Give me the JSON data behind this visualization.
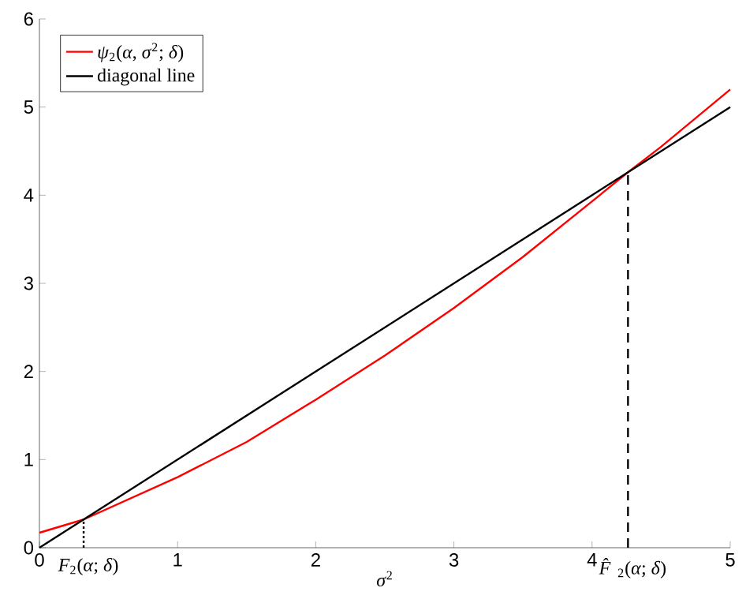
{
  "chart_data": {
    "type": "line",
    "xlabel": "*σ*$^{2}$",
    "x": [
      0,
      0.32,
      1,
      1.5,
      2,
      2.5,
      3,
      3.5,
      4,
      4.26,
      4.5,
      5
    ],
    "series": [
      {
        "name": "*ψ*$_{2}$(*α*, *σ*$^{2}$; *δ*)",
        "color": "#ff0000",
        "values": [
          0.17,
          0.32,
          0.8,
          1.2,
          1.68,
          2.18,
          2.72,
          3.3,
          3.93,
          4.26,
          4.55,
          5.2
        ]
      },
      {
        "name": "diagonal line",
        "color": "#000000",
        "x": [
          0,
          5
        ],
        "values": [
          0,
          5
        ]
      },
      {
        "color": "#000000",
        "x": [
          0.32,
          0.32
        ],
        "values": [
          0,
          0.32
        ],
        "line_style": "dotted"
      },
      {
        "color": "#000000",
        "x": [
          4.26,
          4.26
        ],
        "values": [
          0,
          4.26
        ],
        "line_style": "dashed"
      }
    ],
    "xlim": [
      0,
      5
    ],
    "ylim": [
      0,
      6
    ],
    "xticks": [
      0,
      1,
      2,
      3,
      4,
      5
    ],
    "yticks": [
      0,
      1,
      2,
      3,
      4,
      5,
      6
    ],
    "annotations": [
      {
        "text": "*F*$_{2}$(*α*; *δ*)",
        "x": 0.32,
        "y": 0
      },
      {
        "text": "*F̂*$_{2}$(*α*; *δ*)",
        "x": 4.26,
        "y": 0
      }
    ],
    "legend": "top left",
    "grid": false,
    "marker": "none",
    "line_style": "solid"
  }
}
